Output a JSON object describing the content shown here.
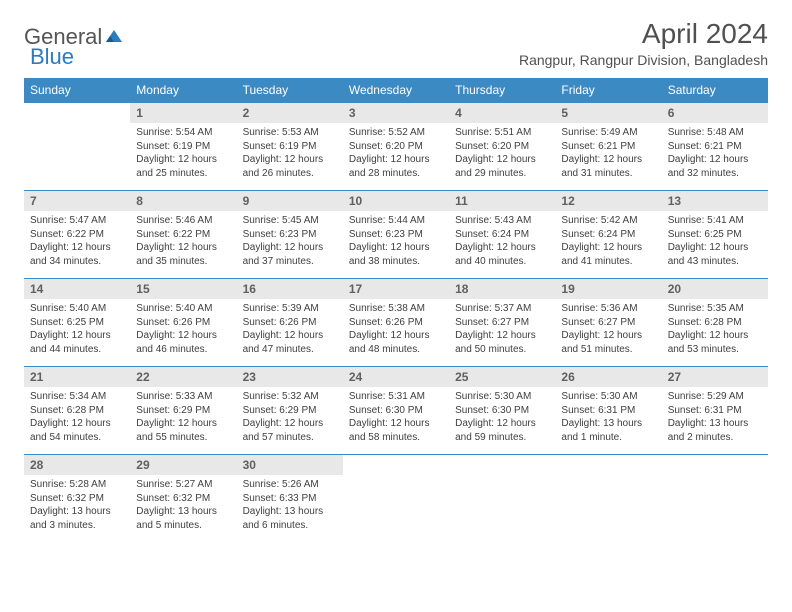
{
  "logo": {
    "text1": "General",
    "text2": "Blue"
  },
  "title": "April 2024",
  "location": "Rangpur, Rangpur Division, Bangladesh",
  "colors": {
    "header_bg": "#3b8ac4",
    "header_text": "#ffffff",
    "daynum_bg": "#e8e8e8",
    "border": "#3b8ac4",
    "body_text": "#404040"
  },
  "weekdays": [
    "Sunday",
    "Monday",
    "Tuesday",
    "Wednesday",
    "Thursday",
    "Friday",
    "Saturday"
  ],
  "weeks": [
    [
      {
        "n": "",
        "sr": "",
        "ss": "",
        "dl": ""
      },
      {
        "n": "1",
        "sr": "Sunrise: 5:54 AM",
        "ss": "Sunset: 6:19 PM",
        "dl": "Daylight: 12 hours and 25 minutes."
      },
      {
        "n": "2",
        "sr": "Sunrise: 5:53 AM",
        "ss": "Sunset: 6:19 PM",
        "dl": "Daylight: 12 hours and 26 minutes."
      },
      {
        "n": "3",
        "sr": "Sunrise: 5:52 AM",
        "ss": "Sunset: 6:20 PM",
        "dl": "Daylight: 12 hours and 28 minutes."
      },
      {
        "n": "4",
        "sr": "Sunrise: 5:51 AM",
        "ss": "Sunset: 6:20 PM",
        "dl": "Daylight: 12 hours and 29 minutes."
      },
      {
        "n": "5",
        "sr": "Sunrise: 5:49 AM",
        "ss": "Sunset: 6:21 PM",
        "dl": "Daylight: 12 hours and 31 minutes."
      },
      {
        "n": "6",
        "sr": "Sunrise: 5:48 AM",
        "ss": "Sunset: 6:21 PM",
        "dl": "Daylight: 12 hours and 32 minutes."
      }
    ],
    [
      {
        "n": "7",
        "sr": "Sunrise: 5:47 AM",
        "ss": "Sunset: 6:22 PM",
        "dl": "Daylight: 12 hours and 34 minutes."
      },
      {
        "n": "8",
        "sr": "Sunrise: 5:46 AM",
        "ss": "Sunset: 6:22 PM",
        "dl": "Daylight: 12 hours and 35 minutes."
      },
      {
        "n": "9",
        "sr": "Sunrise: 5:45 AM",
        "ss": "Sunset: 6:23 PM",
        "dl": "Daylight: 12 hours and 37 minutes."
      },
      {
        "n": "10",
        "sr": "Sunrise: 5:44 AM",
        "ss": "Sunset: 6:23 PM",
        "dl": "Daylight: 12 hours and 38 minutes."
      },
      {
        "n": "11",
        "sr": "Sunrise: 5:43 AM",
        "ss": "Sunset: 6:24 PM",
        "dl": "Daylight: 12 hours and 40 minutes."
      },
      {
        "n": "12",
        "sr": "Sunrise: 5:42 AM",
        "ss": "Sunset: 6:24 PM",
        "dl": "Daylight: 12 hours and 41 minutes."
      },
      {
        "n": "13",
        "sr": "Sunrise: 5:41 AM",
        "ss": "Sunset: 6:25 PM",
        "dl": "Daylight: 12 hours and 43 minutes."
      }
    ],
    [
      {
        "n": "14",
        "sr": "Sunrise: 5:40 AM",
        "ss": "Sunset: 6:25 PM",
        "dl": "Daylight: 12 hours and 44 minutes."
      },
      {
        "n": "15",
        "sr": "Sunrise: 5:40 AM",
        "ss": "Sunset: 6:26 PM",
        "dl": "Daylight: 12 hours and 46 minutes."
      },
      {
        "n": "16",
        "sr": "Sunrise: 5:39 AM",
        "ss": "Sunset: 6:26 PM",
        "dl": "Daylight: 12 hours and 47 minutes."
      },
      {
        "n": "17",
        "sr": "Sunrise: 5:38 AM",
        "ss": "Sunset: 6:26 PM",
        "dl": "Daylight: 12 hours and 48 minutes."
      },
      {
        "n": "18",
        "sr": "Sunrise: 5:37 AM",
        "ss": "Sunset: 6:27 PM",
        "dl": "Daylight: 12 hours and 50 minutes."
      },
      {
        "n": "19",
        "sr": "Sunrise: 5:36 AM",
        "ss": "Sunset: 6:27 PM",
        "dl": "Daylight: 12 hours and 51 minutes."
      },
      {
        "n": "20",
        "sr": "Sunrise: 5:35 AM",
        "ss": "Sunset: 6:28 PM",
        "dl": "Daylight: 12 hours and 53 minutes."
      }
    ],
    [
      {
        "n": "21",
        "sr": "Sunrise: 5:34 AM",
        "ss": "Sunset: 6:28 PM",
        "dl": "Daylight: 12 hours and 54 minutes."
      },
      {
        "n": "22",
        "sr": "Sunrise: 5:33 AM",
        "ss": "Sunset: 6:29 PM",
        "dl": "Daylight: 12 hours and 55 minutes."
      },
      {
        "n": "23",
        "sr": "Sunrise: 5:32 AM",
        "ss": "Sunset: 6:29 PM",
        "dl": "Daylight: 12 hours and 57 minutes."
      },
      {
        "n": "24",
        "sr": "Sunrise: 5:31 AM",
        "ss": "Sunset: 6:30 PM",
        "dl": "Daylight: 12 hours and 58 minutes."
      },
      {
        "n": "25",
        "sr": "Sunrise: 5:30 AM",
        "ss": "Sunset: 6:30 PM",
        "dl": "Daylight: 12 hours and 59 minutes."
      },
      {
        "n": "26",
        "sr": "Sunrise: 5:30 AM",
        "ss": "Sunset: 6:31 PM",
        "dl": "Daylight: 13 hours and 1 minute."
      },
      {
        "n": "27",
        "sr": "Sunrise: 5:29 AM",
        "ss": "Sunset: 6:31 PM",
        "dl": "Daylight: 13 hours and 2 minutes."
      }
    ],
    [
      {
        "n": "28",
        "sr": "Sunrise: 5:28 AM",
        "ss": "Sunset: 6:32 PM",
        "dl": "Daylight: 13 hours and 3 minutes."
      },
      {
        "n": "29",
        "sr": "Sunrise: 5:27 AM",
        "ss": "Sunset: 6:32 PM",
        "dl": "Daylight: 13 hours and 5 minutes."
      },
      {
        "n": "30",
        "sr": "Sunrise: 5:26 AM",
        "ss": "Sunset: 6:33 PM",
        "dl": "Daylight: 13 hours and 6 minutes."
      },
      {
        "n": "",
        "sr": "",
        "ss": "",
        "dl": ""
      },
      {
        "n": "",
        "sr": "",
        "ss": "",
        "dl": ""
      },
      {
        "n": "",
        "sr": "",
        "ss": "",
        "dl": ""
      },
      {
        "n": "",
        "sr": "",
        "ss": "",
        "dl": ""
      }
    ]
  ]
}
